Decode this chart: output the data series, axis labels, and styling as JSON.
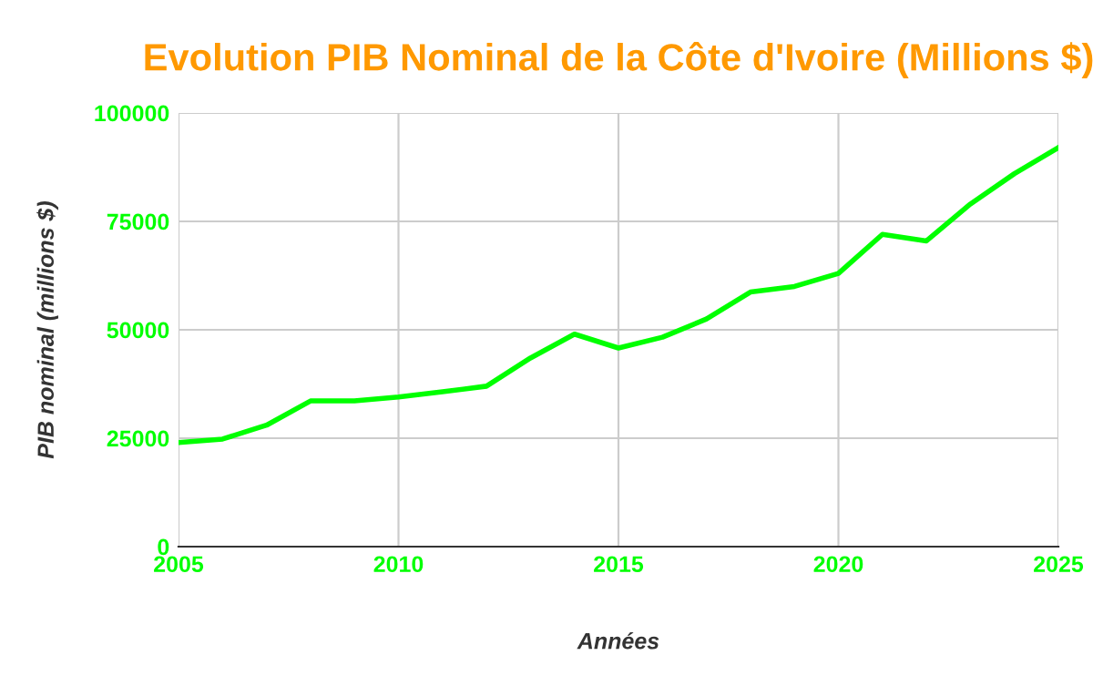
{
  "chart_data": {
    "type": "line",
    "title": "Evolution PIB Nominal de la Côte d'Ivoire (Millions $)",
    "xlabel": "Années",
    "ylabel": "PIB nominal (millions $)",
    "x": [
      2005,
      2006,
      2007,
      2008,
      2009,
      2010,
      2011,
      2012,
      2013,
      2014,
      2015,
      2016,
      2017,
      2018,
      2019,
      2020,
      2021,
      2022,
      2023,
      2024,
      2025
    ],
    "series": [
      {
        "color": "#00ff00",
        "values": [
          24000,
          24800,
          28000,
          33600,
          33600,
          34500,
          35700,
          37000,
          43500,
          49000,
          45800,
          48300,
          52500,
          58700,
          60000,
          63000,
          72000,
          70500,
          79000,
          86000,
          92000
        ]
      }
    ],
    "xlim": [
      2005,
      2025
    ],
    "xticks": [
      2005,
      2010,
      2015,
      2020,
      2025
    ],
    "ylim": [
      0,
      100000
    ],
    "yticks": [
      0,
      25000,
      50000,
      75000,
      100000
    ],
    "grid": true,
    "legend": false,
    "marker": "none",
    "line_style": "solid"
  }
}
